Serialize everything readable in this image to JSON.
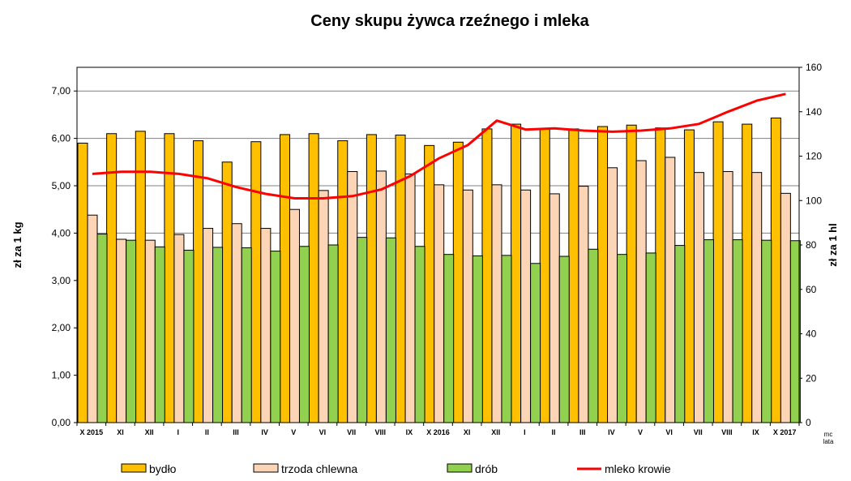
{
  "chart_data": {
    "type": "bar",
    "title": "Ceny skupu żywca rzeźnego i mleka",
    "ylabel_left": "zł za 1 kg",
    "ylabel_right": "zł za 1 hl",
    "xlabel_unit_top": "mc",
    "xlabel_unit_bottom": "lata",
    "ylim_left": [
      0,
      7.5
    ],
    "ylim_right": [
      0,
      160
    ],
    "yticks_left": [
      "0,00",
      "1,00",
      "2,00",
      "3,00",
      "4,00",
      "5,00",
      "6,00",
      "7,00"
    ],
    "yticks_right": [
      "0",
      "20",
      "40",
      "60",
      "80",
      "100",
      "120",
      "140",
      "160"
    ],
    "grid": "horizontal",
    "legend_position": "bottom",
    "categories": [
      "X 2015",
      "XI",
      "XII",
      "I",
      "II",
      "III",
      "IV",
      "V",
      "VI",
      "VII",
      "VIII",
      "IX",
      "X 2016",
      "XI",
      "XII",
      "I",
      "II",
      "III",
      "IV",
      "V",
      "VI",
      "VII",
      "VIII",
      "IX",
      "X 2017"
    ],
    "series": [
      {
        "name": "bydło",
        "axis": "left",
        "color": "#FFC000",
        "values": [
          5.9,
          6.1,
          6.15,
          6.1,
          5.95,
          5.5,
          5.93,
          6.08,
          6.1,
          5.95,
          6.08,
          6.07,
          5.85,
          5.92,
          6.2,
          6.3,
          6.2,
          6.2,
          6.25,
          6.28,
          6.22,
          6.18,
          6.35,
          6.3,
          6.43
        ]
      },
      {
        "name": "trzoda chlewna",
        "axis": "left",
        "color": "#FBD5B5",
        "values": [
          4.38,
          3.87,
          3.85,
          3.97,
          4.1,
          4.2,
          4.1,
          4.5,
          4.9,
          5.3,
          5.31,
          5.25,
          5.02,
          4.91,
          5.02,
          4.91,
          4.83,
          4.99,
          5.38,
          5.53,
          5.6,
          5.28,
          5.3,
          5.28,
          4.84
        ]
      },
      {
        "name": "drób",
        "axis": "left",
        "color": "#92D050",
        "values": [
          3.98,
          3.85,
          3.71,
          3.64,
          3.7,
          3.69,
          3.62,
          3.72,
          3.75,
          3.91,
          3.9,
          3.72,
          3.55,
          3.52,
          3.53,
          3.36,
          3.51,
          3.66,
          3.55,
          3.58,
          3.74,
          3.86,
          3.86,
          3.85,
          3.84
        ]
      },
      {
        "name": "mleko krowie",
        "axis": "right",
        "type": "line",
        "color": "#FF0000",
        "values": [
          112,
          113,
          113,
          112,
          110,
          106,
          103,
          101,
          101,
          102,
          105,
          111,
          119,
          125,
          136,
          132,
          132.5,
          131.5,
          131,
          131.5,
          132.5,
          134.5,
          140,
          145,
          148
        ]
      }
    ]
  }
}
